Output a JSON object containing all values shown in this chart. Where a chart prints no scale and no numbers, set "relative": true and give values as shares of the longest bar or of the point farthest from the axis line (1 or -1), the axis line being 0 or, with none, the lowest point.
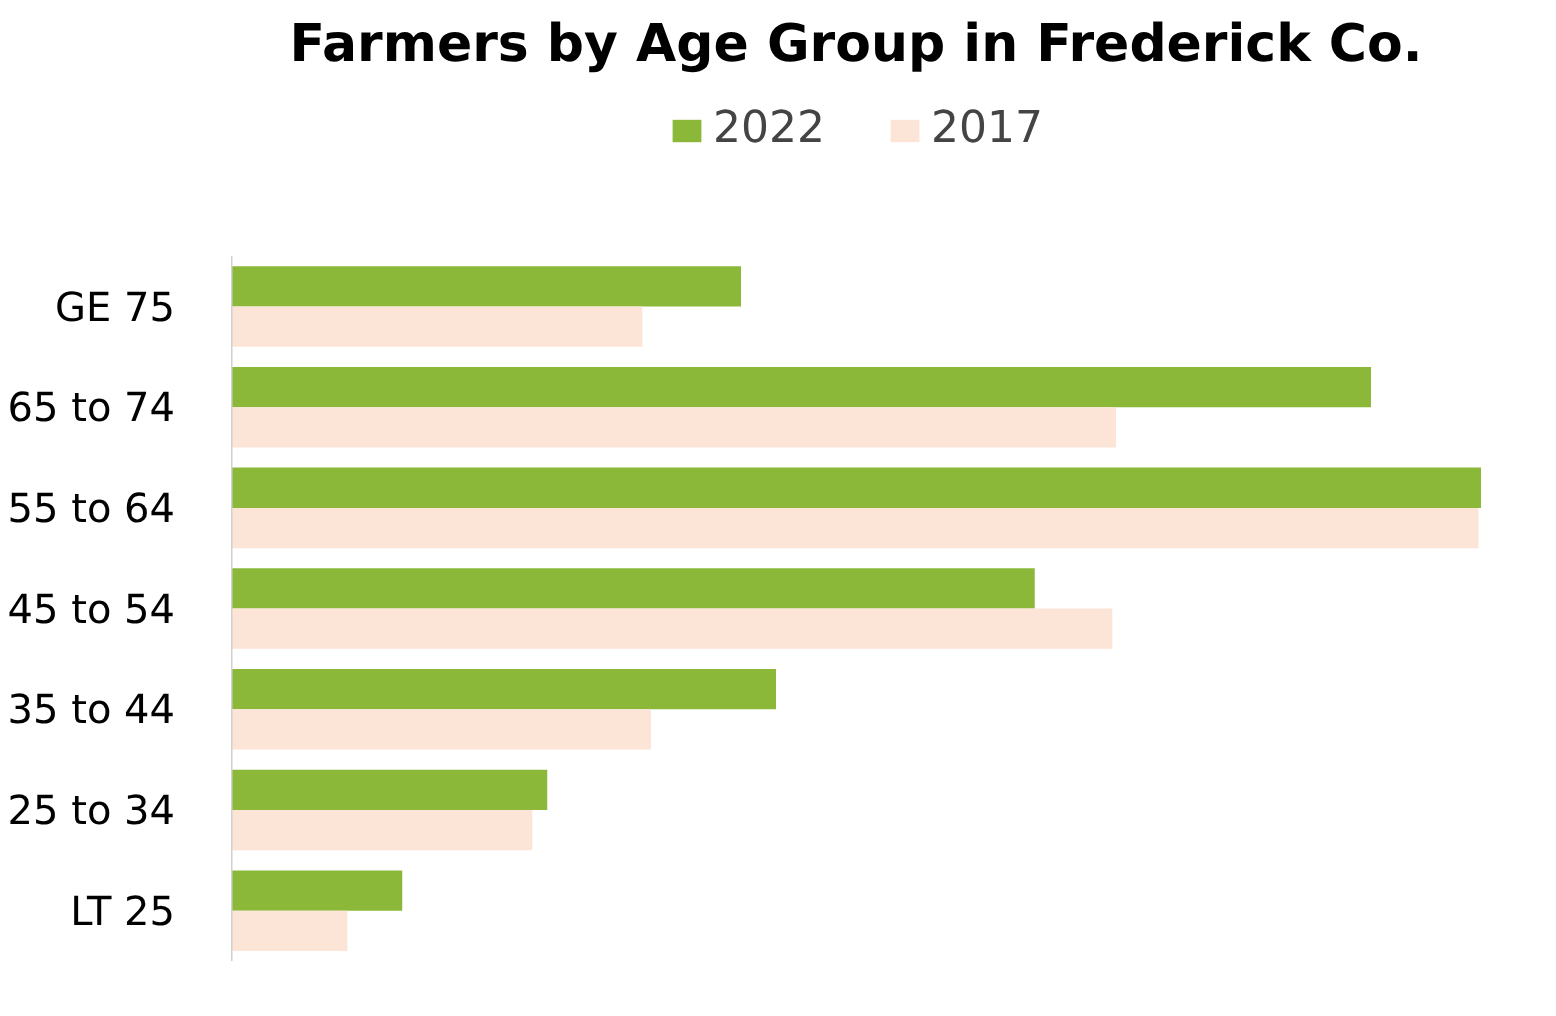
{
  "chart_data": {
    "type": "bar",
    "orientation": "horizontal",
    "relative": true,
    "title": "Farmers by Age Group in Frederick Co.",
    "categories": [
      "GE 75",
      "65 to 74",
      "55 to 64",
      "45 to 54",
      "35 to 44",
      "25 to 34",
      "LT 25"
    ],
    "series": [
      {
        "name": "2022",
        "color": "#8cb83a",
        "values": [
          0.408,
          0.912,
          1,
          0.643,
          0.436,
          0.253,
          0.137
        ]
      },
      {
        "name": "2017",
        "color": "#fce4d6",
        "values": [
          0.329,
          0.708,
          0.998,
          0.705,
          0.336,
          0.241,
          0.093
        ]
      }
    ],
    "legend": "top"
  }
}
